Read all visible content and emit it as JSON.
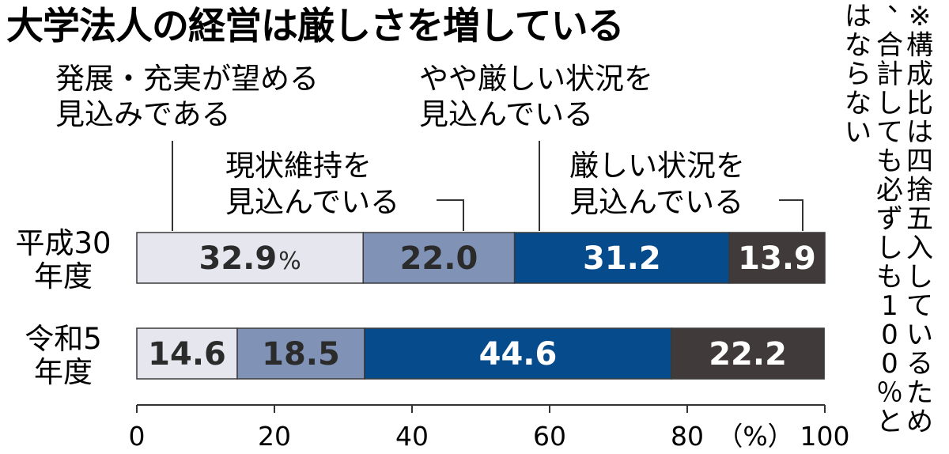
{
  "colors": {
    "text": "#2b2b2b",
    "bar_outline": "#3a3a3a",
    "leader": "#333333"
  },
  "chart_data": {
    "type": "bar",
    "orientation": "horizontal",
    "stacked": true,
    "title": "大学法人の経営は厳しさを増している",
    "note": "※構成比は四捨五入しているため、合計しても必ずしも100％とはならない",
    "unit": "（%）",
    "first_value_unit": "%",
    "categories": [
      "平成30年度",
      "令和5年度"
    ],
    "xlim": [
      0,
      100
    ],
    "xticks": [
      0,
      20,
      40,
      60,
      80,
      100
    ],
    "series": [
      {
        "name": "発展・充実が望める見込みである",
        "values": [
          32.9,
          14.6
        ],
        "color": "#e6e7ee",
        "label_color": "#2b2b2b"
      },
      {
        "name": "現状維持を見込んでいる",
        "values": [
          22.0,
          18.5
        ],
        "color": "#8093b7",
        "label_color": "#2b2b2b"
      },
      {
        "name": "やや厳しい状況を見込んでいる",
        "values": [
          31.2,
          44.6
        ],
        "color": "#064c8d",
        "label_color": "#ffffff"
      },
      {
        "name": "厳しい状況を見込んでいる",
        "values": [
          13.9,
          22.2
        ],
        "color": "#403a3b",
        "label_color": "#ffffff"
      }
    ]
  }
}
